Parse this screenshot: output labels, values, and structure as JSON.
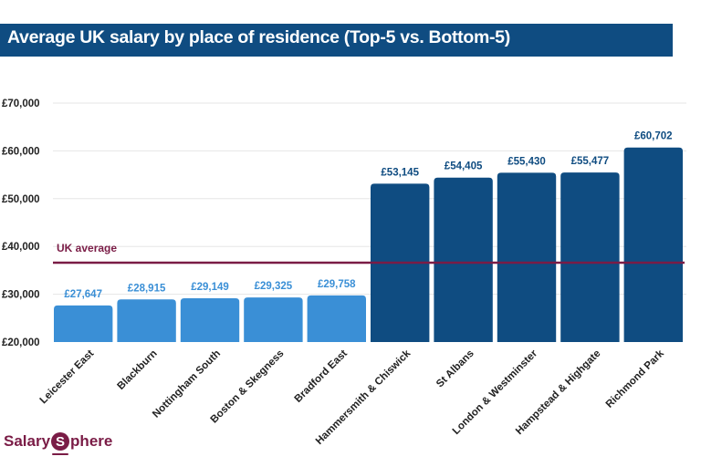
{
  "header": {
    "title": "Average UK salary by place of residence (Top-5 vs. Bottom-5)"
  },
  "brand": {
    "prefix": "Salary",
    "circle_letter": "S",
    "suffix": "phere"
  },
  "colors": {
    "title_bg": "#0f4c81",
    "bottom5": "#3a8fd6",
    "top5": "#0f4c81",
    "uk_average": "#7a1c46",
    "grid": "#e6e6e6"
  },
  "chart_data": {
    "type": "bar",
    "title": "Average UK salary by place of residence (Top-5 vs. Bottom-5)",
    "xlabel": "",
    "ylabel": "",
    "ylim": [
      20000,
      70000
    ],
    "yticks": [
      20000,
      30000,
      40000,
      50000,
      60000,
      70000
    ],
    "ytick_labels": [
      "£20,000",
      "£30,000",
      "£40,000",
      "£50,000",
      "£60,000",
      "£70,000"
    ],
    "grid": true,
    "categories": [
      "Leicester East",
      "Blackburn",
      "Nottingham South",
      "Boston & Skegness",
      "Bradford East",
      "Hammersmith & Chiswick",
      "St Albans",
      "London & Westminster",
      "Hampstead & Highgate",
      "Richmond Park"
    ],
    "values": [
      27647,
      28915,
      29149,
      29325,
      29758,
      53145,
      54405,
      55430,
      55477,
      60702
    ],
    "value_labels": [
      "£27,647",
      "£28,915",
      "£29,149",
      "£29,325",
      "£29,758",
      "£53,145",
      "£54,405",
      "£55,430",
      "£55,477",
      "£60,702"
    ],
    "groups": [
      "Bottom-5",
      "Bottom-5",
      "Bottom-5",
      "Bottom-5",
      "Bottom-5",
      "Top-5",
      "Top-5",
      "Top-5",
      "Top-5",
      "Top-5"
    ],
    "reference_line": {
      "label": "UK average",
      "value": 36600
    }
  }
}
